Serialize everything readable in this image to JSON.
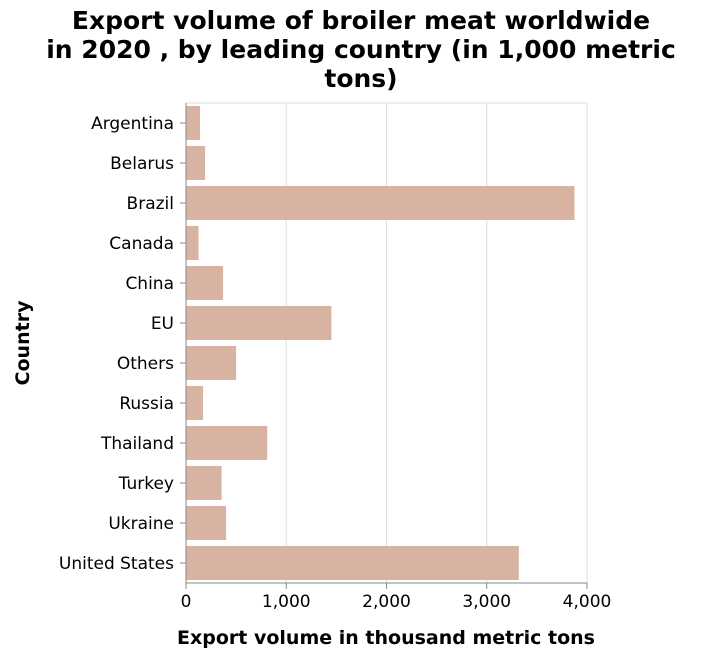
{
  "chart_data": {
    "type": "bar",
    "orientation": "horizontal",
    "title_lines": [
      "Export volume of broiler meat worldwide",
      "in 2020 , by leading country (in 1,000 metric",
      "tons)"
    ],
    "xlabel": "Export volume in thousand metric tons",
    "ylabel": "Country",
    "categories": [
      "Argentina",
      "Belarus",
      "Brazil",
      "Canada",
      "China",
      "EU",
      "Others",
      "Russia",
      "Thailand",
      "Turkey",
      "Ukraine",
      "United States"
    ],
    "values": [
      140,
      190,
      3875,
      125,
      370,
      1450,
      500,
      170,
      810,
      355,
      400,
      3320
    ],
    "xlim": [
      0,
      4000
    ],
    "xticks": [
      0,
      1000,
      2000,
      3000,
      4000
    ],
    "xtick_labels": [
      "0",
      "1,000",
      "2,000",
      "3,000",
      "4,000"
    ],
    "grid": true,
    "bar_color": "#d8b3a2"
  }
}
